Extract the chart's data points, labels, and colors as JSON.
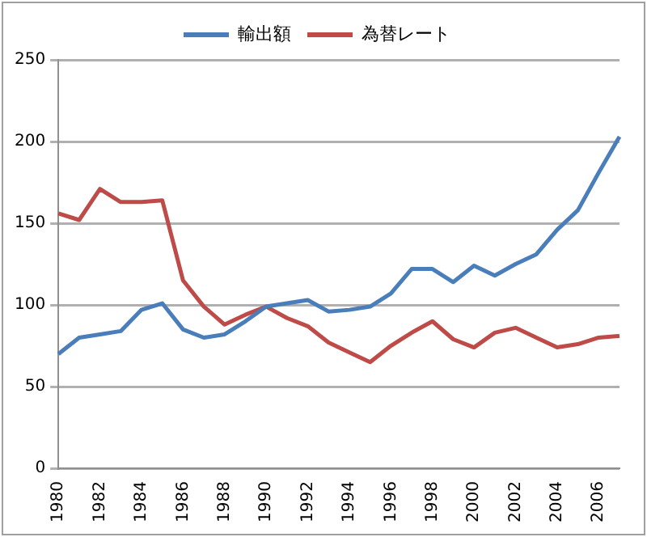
{
  "chart_data": {
    "type": "line",
    "categories": [
      "1980",
      null,
      "1982",
      null,
      "1984",
      null,
      "1986",
      null,
      "1988",
      null,
      "1990",
      null,
      "1992",
      null,
      "1994",
      null,
      "1996",
      null,
      "1998",
      null,
      "2000",
      null,
      "2002",
      null,
      "2004",
      null,
      "2006",
      null
    ],
    "series": [
      {
        "name": "輸出額",
        "color": "#4a7ebb",
        "values": [
          70,
          80,
          82,
          84,
          97,
          101,
          85,
          80,
          82,
          90,
          99,
          101,
          103,
          96,
          97,
          99,
          107,
          122,
          122,
          114,
          124,
          118,
          125,
          131,
          146,
          158,
          181,
          203
        ]
      },
      {
        "name": "為替レート",
        "color": "#be4b48",
        "values": [
          156,
          152,
          171,
          163,
          163,
          164,
          115,
          99,
          88,
          94,
          99,
          92,
          87,
          77,
          71,
          65,
          75,
          83,
          90,
          79,
          74,
          83,
          86,
          80,
          74,
          76,
          80,
          81
        ]
      }
    ],
    "ylim": [
      0,
      250
    ],
    "yticks": [
      0,
      50,
      100,
      150,
      200,
      250
    ],
    "grid": "y",
    "legend": "top",
    "marker": "none",
    "line_style": "solid"
  }
}
